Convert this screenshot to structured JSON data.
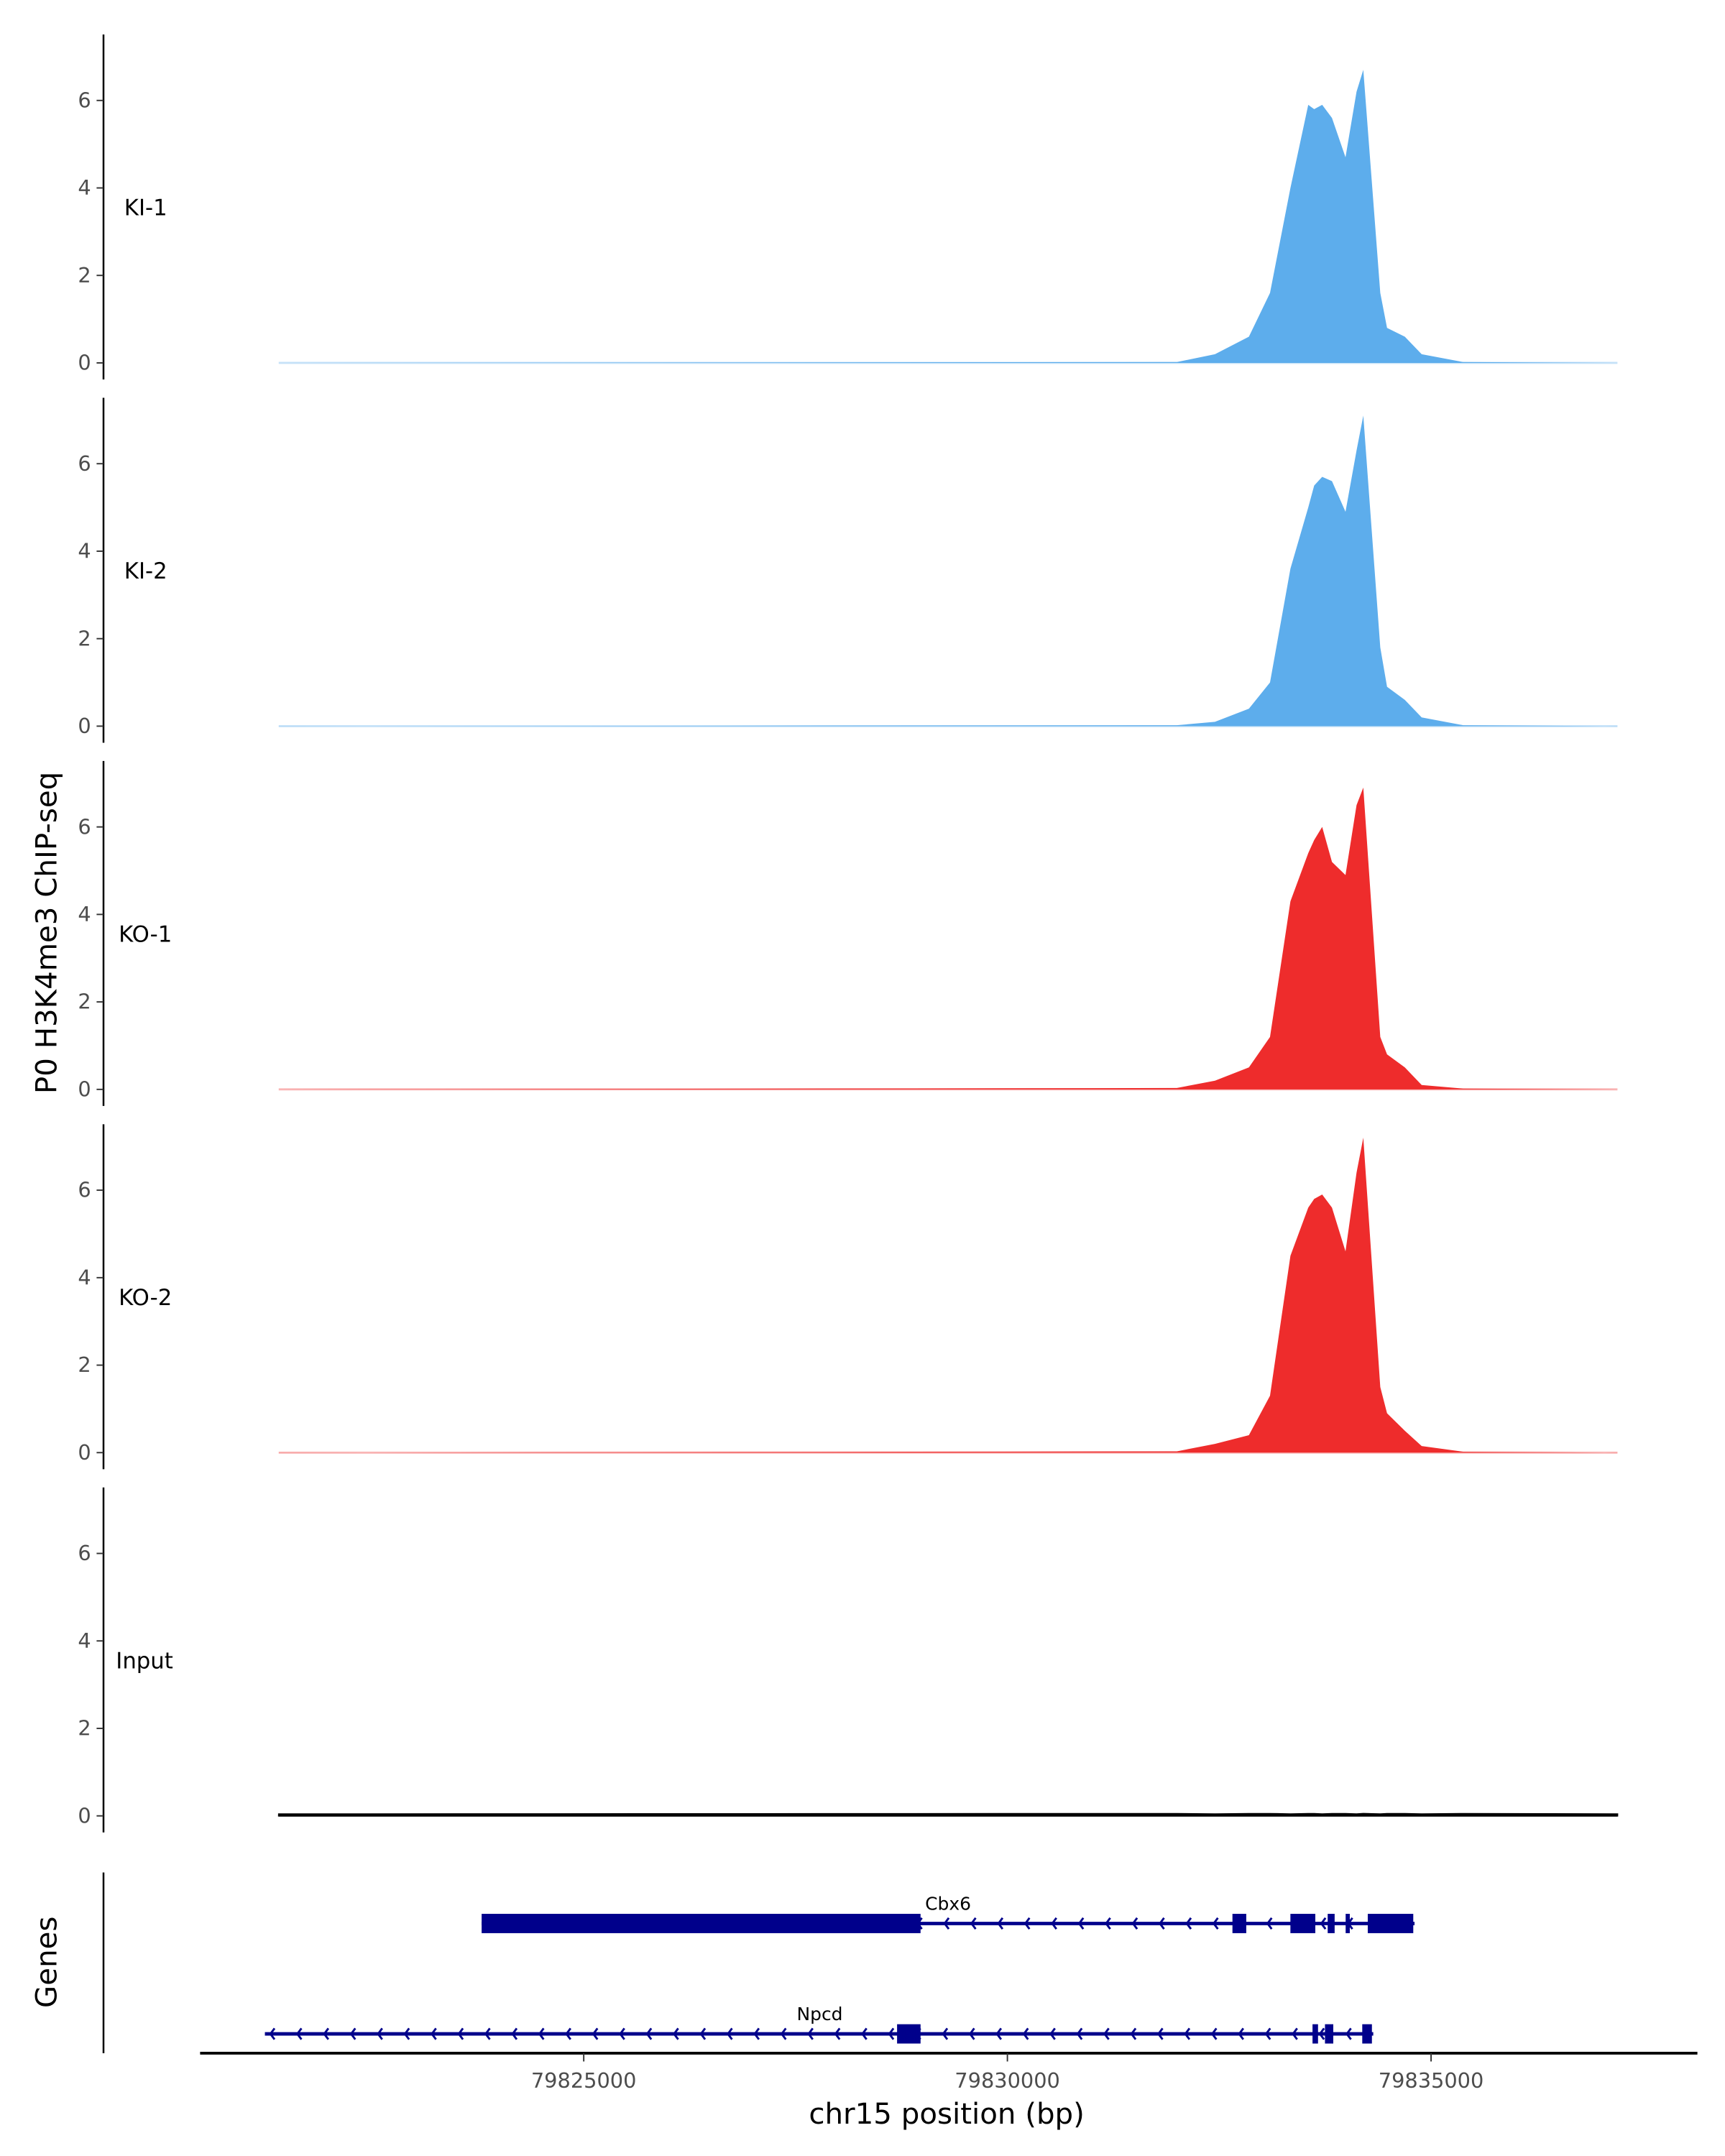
{
  "chart_data": {
    "type": "area",
    "ylabel": "P0 H3K4me3 ChIP-seq",
    "xlabel": "chr15 position (bp)",
    "genes_label": "Genes",
    "xlim": [
      79819800,
      79837900
    ],
    "xticks": [
      79825000,
      79830000,
      79835000
    ],
    "xtick_labels": [
      "79825000",
      "79830000",
      "79835000"
    ],
    "ylim": [
      0,
      7.5
    ],
    "yticks": [
      0,
      2,
      4,
      6
    ],
    "ytick_labels": [
      "0",
      "2",
      "4",
      "6"
    ],
    "x": [
      79821400,
      79832000,
      79832450,
      79832850,
      79833100,
      79833340,
      79833550,
      79833620,
      79833715,
      79833830,
      79833990,
      79834120,
      79834200,
      79834400,
      79834480,
      79834690,
      79834890,
      79835380,
      79837200
    ],
    "series": [
      {
        "name": "KI-1",
        "color": "#5DADEC",
        "values": [
          0,
          0.02,
          0.2,
          0.6,
          1.6,
          4.0,
          5.9,
          5.8,
          5.9,
          5.6,
          4.7,
          6.2,
          6.7,
          1.6,
          0.8,
          0.6,
          0.2,
          0.02,
          0
        ]
      },
      {
        "name": "KI-2",
        "color": "#5DADEC",
        "values": [
          0,
          0.02,
          0.1,
          0.4,
          1.0,
          3.6,
          5.0,
          5.5,
          5.7,
          5.6,
          4.9,
          6.3,
          7.1,
          1.8,
          0.9,
          0.6,
          0.2,
          0.02,
          0
        ]
      },
      {
        "name": "KO-1",
        "color": "#EE2C2C",
        "values": [
          0,
          0.03,
          0.2,
          0.5,
          1.2,
          4.3,
          5.4,
          5.7,
          6.0,
          5.2,
          4.9,
          6.5,
          6.9,
          1.2,
          0.8,
          0.5,
          0.1,
          0.02,
          0
        ]
      },
      {
        "name": "KO-2",
        "color": "#EE2C2C",
        "values": [
          0,
          0.03,
          0.2,
          0.4,
          1.3,
          4.5,
          5.6,
          5.8,
          5.9,
          5.6,
          4.6,
          6.4,
          7.2,
          1.5,
          0.9,
          0.5,
          0.15,
          0.02,
          0
        ]
      },
      {
        "name": "Input",
        "color": "#000000",
        "values": [
          0.04,
          0.05,
          0.04,
          0.05,
          0.05,
          0.04,
          0.05,
          0.05,
          0.04,
          0.05,
          0.05,
          0.04,
          0.05,
          0.04,
          0.05,
          0.05,
          0.04,
          0.05,
          0.04
        ]
      }
    ],
    "genes": [
      {
        "name": "Cbx6",
        "strand": "-",
        "color": "#00008B",
        "start": 79823795,
        "end": 79834805,
        "exons": [
          [
            79823795,
            79828975
          ],
          [
            79832656,
            79832819
          ],
          [
            79833340,
            79833634
          ],
          [
            79833780,
            79833862
          ],
          [
            79833992,
            79834041
          ],
          [
            79834253,
            79834790
          ]
        ]
      },
      {
        "name": "Npcd",
        "strand": "-",
        "color": "#00008B",
        "start": 79821237,
        "end": 79834318,
        "exons": [
          [
            79828698,
            79828975
          ],
          [
            79833601,
            79833666
          ],
          [
            79833748,
            79833846
          ],
          [
            79834188,
            79834302
          ]
        ]
      }
    ]
  }
}
